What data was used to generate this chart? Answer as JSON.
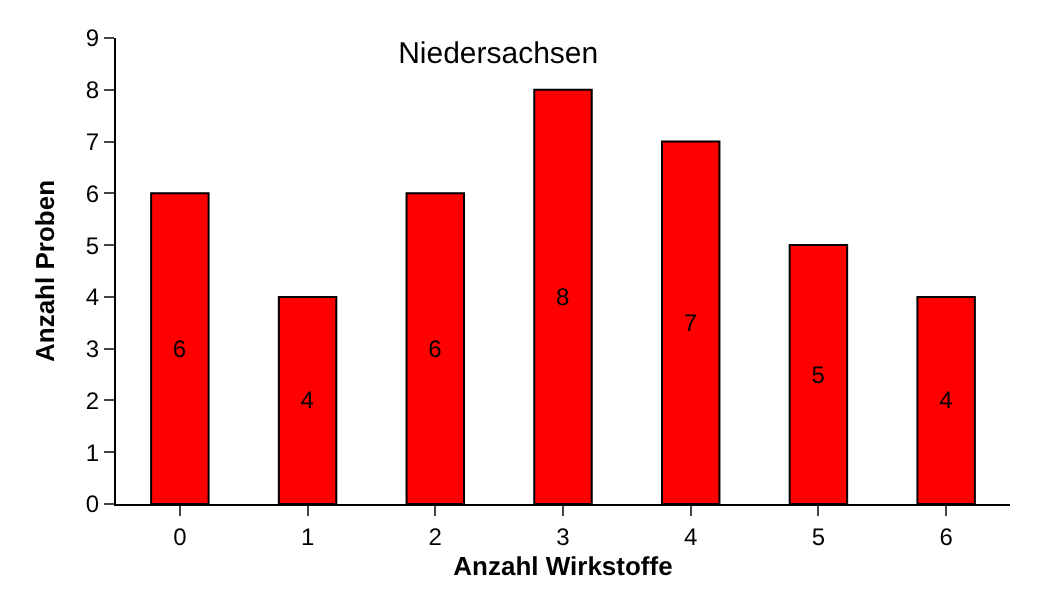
{
  "chart_data": {
    "type": "bar",
    "title": "Niedersachsen",
    "xlabel": "Anzahl Wirkstoffe",
    "ylabel": "Anzahl Proben",
    "categories": [
      "0",
      "1",
      "2",
      "3",
      "4",
      "5",
      "6"
    ],
    "values": [
      6,
      4,
      6,
      8,
      7,
      5,
      4
    ],
    "color": "#ff0000",
    "ylim": [
      0,
      9
    ],
    "yticks": [
      0,
      1,
      2,
      3,
      4,
      5,
      6,
      7,
      8,
      9
    ],
    "data_labels": true
  }
}
